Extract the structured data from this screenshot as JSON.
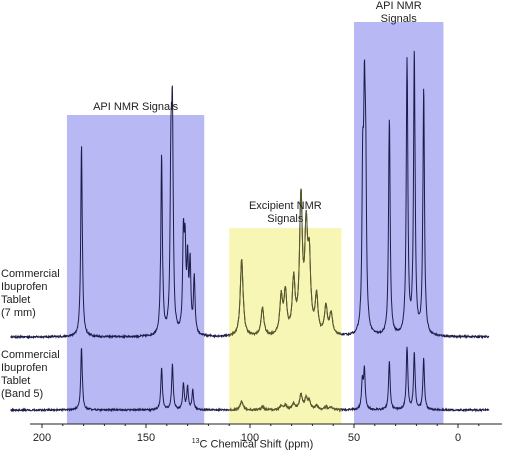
{
  "chart_data": {
    "type": "line",
    "title": "",
    "xlabel_sup": "13",
    "xlabel": "C Chemical Shift (ppm)",
    "ylabel": "",
    "xlim": [
      220,
      -20
    ],
    "x_reversed": true,
    "x_ticks": [
      200,
      150,
      100,
      50,
      0
    ],
    "regions": [
      {
        "label_lines": [
          "API NMR Signals"
        ],
        "xmin": 122,
        "xmax": 188,
        "color": "#b7b8f4",
        "kind": "api"
      },
      {
        "label_lines": [
          "Excipient NMR",
          "Signals"
        ],
        "xmin": 56,
        "xmax": 110,
        "color": "#f8f6b4",
        "kind": "excipient"
      },
      {
        "label_lines": [
          "API NMR",
          "Signals"
        ],
        "xmin": 7,
        "xmax": 50,
        "color": "#b7b8f4",
        "kind": "api"
      }
    ],
    "series": [
      {
        "label_lines": [
          "Commercial",
          "Ibuprofen",
          "Tablet",
          "(7 mm)"
        ],
        "baseline": 0,
        "color": "#1c1c4a",
        "peaks": [
          {
            "ppm": 181,
            "h": 0.62
          },
          {
            "ppm": 142.5,
            "h": 0.58
          },
          {
            "ppm": 138,
            "h": 0.52
          },
          {
            "ppm": 137.3,
            "h": 0.65
          },
          {
            "ppm": 132,
            "h": 0.3
          },
          {
            "ppm": 131.2,
            "h": 0.25
          },
          {
            "ppm": 130,
            "h": 0.22
          },
          {
            "ppm": 128.8,
            "h": 0.22
          },
          {
            "ppm": 126.8,
            "h": 0.18
          },
          {
            "ppm": 45.8,
            "h": 0.47
          },
          {
            "ppm": 45,
            "h": 0.62
          },
          {
            "ppm": 44.4,
            "h": 0.46
          },
          {
            "ppm": 33,
            "h": 0.7
          },
          {
            "ppm": 24.5,
            "h": 0.88
          },
          {
            "ppm": 21,
            "h": 0.91
          },
          {
            "ppm": 16.5,
            "h": 0.8
          }
        ]
      },
      {
        "label_lines": [
          "Commercial",
          "Ibuprofen",
          "Tablet",
          "(Band 5)"
        ],
        "baseline": 0,
        "color": "#1c1c4a",
        "peaks": [
          {
            "ppm": 181,
            "h": 0.22
          },
          {
            "ppm": 142.5,
            "h": 0.15
          },
          {
            "ppm": 137.3,
            "h": 0.16
          },
          {
            "ppm": 132,
            "h": 0.09
          },
          {
            "ppm": 130,
            "h": 0.08
          },
          {
            "ppm": 127.5,
            "h": 0.07
          },
          {
            "ppm": 46,
            "h": 0.1
          },
          {
            "ppm": 45,
            "h": 0.14
          },
          {
            "ppm": 33,
            "h": 0.17
          },
          {
            "ppm": 24.5,
            "h": 0.22
          },
          {
            "ppm": 21,
            "h": 0.2
          },
          {
            "ppm": 16.5,
            "h": 0.18
          }
        ]
      }
    ],
    "excipient_peaks": [
      {
        "ppm": 104,
        "h": 0.25
      },
      {
        "ppm": 94,
        "h": 0.09
      },
      {
        "ppm": 85,
        "h": 0.12
      },
      {
        "ppm": 83,
        "h": 0.13
      },
      {
        "ppm": 79,
        "h": 0.17
      },
      {
        "ppm": 75.5,
        "h": 0.43
      },
      {
        "ppm": 73,
        "h": 0.31
      },
      {
        "ppm": 71.5,
        "h": 0.22
      },
      {
        "ppm": 68,
        "h": 0.12
      },
      {
        "ppm": 63.5,
        "h": 0.09
      },
      {
        "ppm": 61,
        "h": 0.07
      }
    ]
  }
}
